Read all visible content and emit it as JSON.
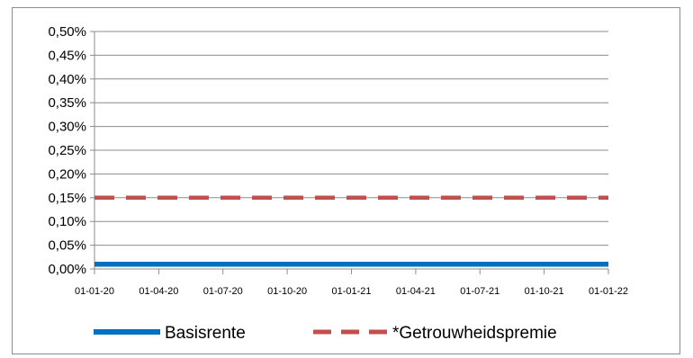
{
  "chart_data": {
    "type": "line",
    "title": "",
    "xlabel": "",
    "ylabel": "",
    "x": [
      "01-01-20",
      "01-04-20",
      "01-07-20",
      "01-10-20",
      "01-01-21",
      "01-04-21",
      "01-07-21",
      "01-10-21",
      "01-01-22"
    ],
    "x_tick_labels": [
      "01-01-20",
      "01-04-20",
      "01-07-20",
      "01-10-20",
      "01-01-21",
      "01-04-21",
      "01-07-21",
      "01-10-21",
      "01-01-22"
    ],
    "y_tick_labels": [
      "0,00%",
      "0,05%",
      "0,10%",
      "0,15%",
      "0,20%",
      "0,25%",
      "0,30%",
      "0,35%",
      "0,40%",
      "0,45%",
      "0,50%"
    ],
    "ylim": [
      0,
      0.5
    ],
    "y_unit": "%",
    "grid": "horizontal",
    "legend_position": "bottom",
    "series": [
      {
        "name": "Basisrente",
        "style": "solid",
        "color": "#0070c0",
        "values": [
          0.01,
          0.01,
          0.01,
          0.01,
          0.01,
          0.01,
          0.01,
          0.01,
          0.01
        ]
      },
      {
        "name": "*Getrouwheidspremie",
        "style": "dashed",
        "color": "#c0504d",
        "values": [
          0.15,
          0.15,
          0.15,
          0.15,
          0.15,
          0.15,
          0.15,
          0.15,
          0.15
        ]
      }
    ]
  }
}
